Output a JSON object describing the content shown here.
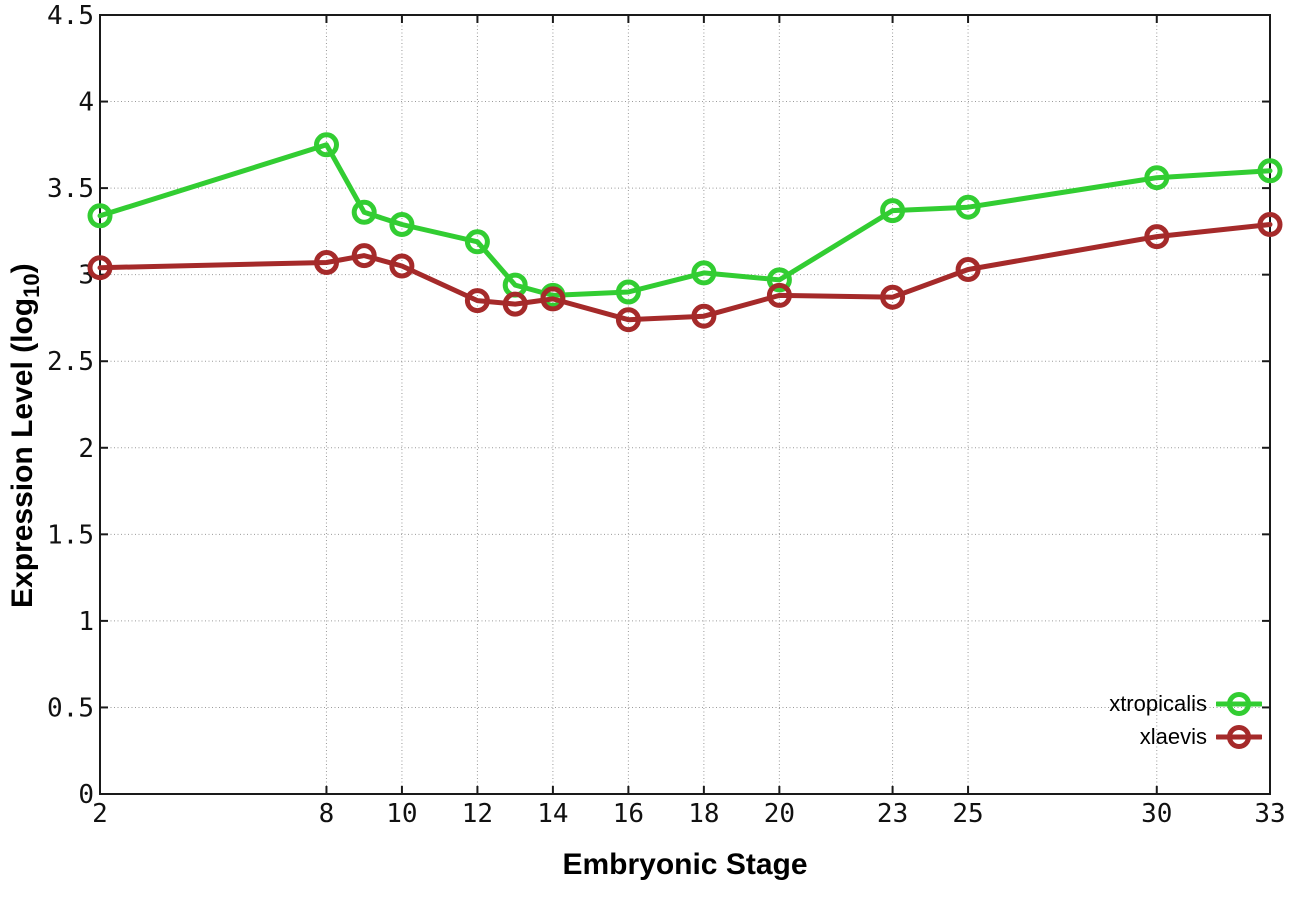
{
  "chart_data": {
    "type": "line",
    "title": "",
    "xlabel": "Embryonic Stage",
    "ylabel": {
      "prefix": "Expression Level (log",
      "subscript": "10",
      "suffix": ")"
    },
    "xlim": [
      2,
      33
    ],
    "ylim": [
      0,
      4.5
    ],
    "grid": true,
    "legend_position": "bottom-right",
    "x_ticks": [
      2,
      8,
      10,
      12,
      14,
      16,
      18,
      20,
      23,
      25,
      30,
      33
    ],
    "x_tick_labels": [
      "2",
      "8",
      "10",
      "12",
      "14",
      "16",
      "18",
      "20",
      "23",
      "25",
      "30",
      "33"
    ],
    "y_ticks": [
      0,
      0.5,
      1,
      1.5,
      2,
      2.5,
      3,
      3.5,
      4,
      4.5
    ],
    "y_tick_labels": [
      "0",
      "0.5",
      "1",
      "1.5",
      "2",
      "2.5",
      "3",
      "3.5",
      "4",
      "4.5"
    ],
    "x": [
      2,
      8,
      9,
      10,
      12,
      13,
      14,
      16,
      18,
      20,
      23,
      25,
      30,
      33
    ],
    "series": [
      {
        "name": "xtropicalis",
        "color": "#32cd32",
        "values": [
          3.34,
          3.75,
          3.36,
          3.29,
          3.19,
          2.94,
          2.88,
          2.9,
          3.01,
          2.97,
          3.37,
          3.39,
          3.56,
          3.6
        ]
      },
      {
        "name": "xlaevis",
        "color": "#a52a2a",
        "values": [
          3.04,
          3.07,
          3.11,
          3.05,
          2.85,
          2.83,
          2.86,
          2.74,
          2.76,
          2.88,
          2.87,
          3.03,
          3.22,
          3.29
        ]
      }
    ]
  }
}
